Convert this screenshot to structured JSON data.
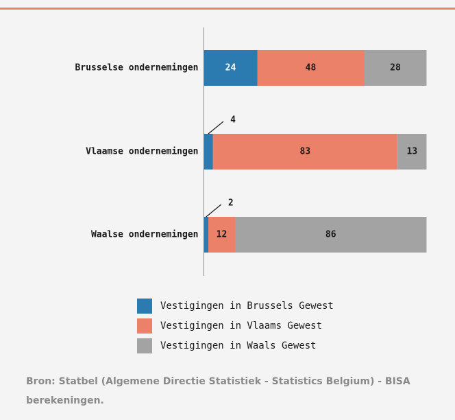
{
  "chart_data": {
    "type": "stacked-bar-horizontal",
    "categories": [
      "Brusselse ondernemingen",
      "Vlaamse ondernemingen",
      "Waalse ondernemingen"
    ],
    "series": [
      {
        "name": "Vestigingen in Brussels Gewest",
        "color": "#2b7bb0",
        "values": [
          24,
          4,
          2
        ]
      },
      {
        "name": "Vestigingen in Vlaams Gewest",
        "color": "#eb8168",
        "values": [
          48,
          83,
          12
        ]
      },
      {
        "name": "Vestigingen in Waals Gewest",
        "color": "#a3a3a3",
        "values": [
          28,
          13,
          86
        ]
      }
    ],
    "xlim": [
      0,
      100
    ],
    "source": "Bron: Statbel (Algemene Directie Statistiek - Statistics Belgium) - BISA berekeningen."
  }
}
